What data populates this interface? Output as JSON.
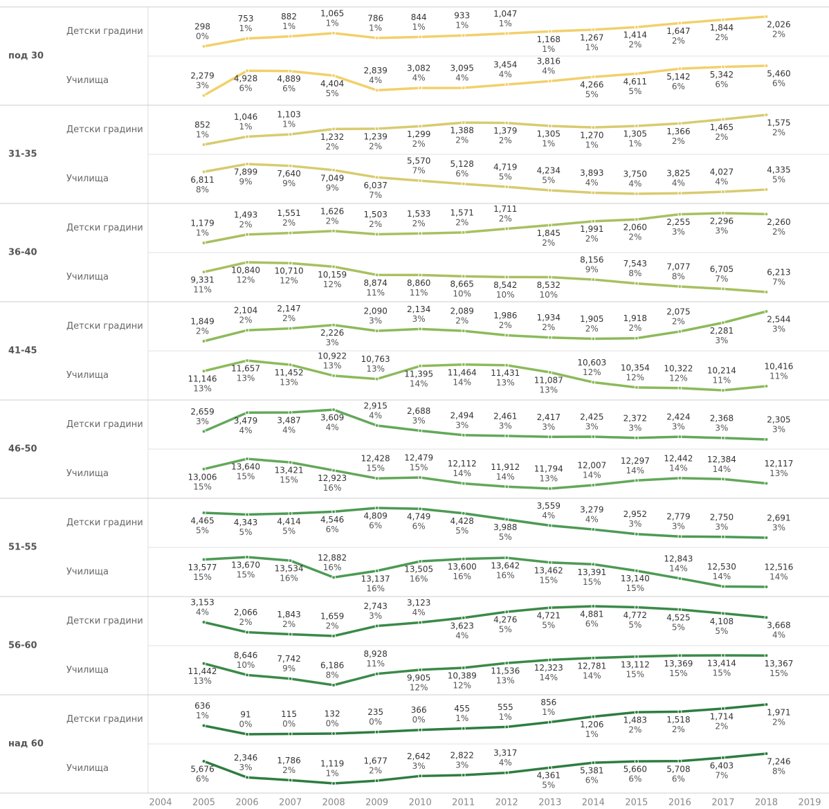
{
  "chart_data": {
    "type": "line",
    "x": [
      2005,
      2006,
      2007,
      2008,
      2009,
      2010,
      2011,
      2012,
      2013,
      2014,
      2015,
      2016,
      2017,
      2018
    ],
    "xlim": [
      2004,
      2019
    ],
    "xticks": [
      2004,
      2005,
      2006,
      2007,
      2008,
      2009,
      2010,
      2011,
      2012,
      2013,
      2014,
      2015,
      2016,
      2017,
      2018,
      2019
    ],
    "groups": [
      {
        "name": "под 30",
        "color": "#f2d06b",
        "rows": [
          {
            "name": "Детски градини",
            "values": [
              298,
              753,
              882,
              1065,
              786,
              844,
              933,
              1047,
              1168,
              1267,
              1414,
              1647,
              1844,
              2026
            ],
            "value_labels": [
              "298",
              "753",
              "882",
              "1,065",
              "786",
              "844",
              "933",
              "1,047",
              "1,168",
              "1,267",
              "1,414",
              "1,647",
              "1,844",
              "2,026"
            ],
            "percent_labels": [
              "0%",
              "1%",
              "1%",
              "1%",
              "1%",
              "1%",
              "1%",
              "1%",
              "1%",
              "1%",
              "2%",
              "2%",
              "2%",
              "2%"
            ]
          },
          {
            "name": "Училища",
            "values": [
              2279,
              4928,
              4889,
              4404,
              2839,
              3082,
              3095,
              3454,
              3816,
              4266,
              4611,
              5142,
              5342,
              5460
            ],
            "value_labels": [
              "2,279",
              "4,928",
              "4,889",
              "4,404",
              "2,839",
              "3,082",
              "3,095",
              "3,454",
              "3,816",
              "4,266",
              "4,611",
              "5,142",
              "5,342",
              "5,460"
            ],
            "percent_labels": [
              "3%",
              "6%",
              "6%",
              "5%",
              "4%",
              "4%",
              "4%",
              "4%",
              "4%",
              "5%",
              "5%",
              "6%",
              "6%",
              "6%"
            ]
          }
        ]
      },
      {
        "name": "31-35",
        "color": "#d8cb70",
        "rows": [
          {
            "name": "Детски градини",
            "values": [
              852,
              1046,
              1103,
              1232,
              1239,
              1299,
              1388,
              1379,
              1305,
              1270,
              1305,
              1366,
              1465,
              1575
            ],
            "value_labels": [
              "852",
              "1,046",
              "1,103",
              "1,232",
              "1,239",
              "1,299",
              "1,388",
              "1,379",
              "1,305",
              "1,270",
              "1,305",
              "1,366",
              "1,465",
              "1,575"
            ],
            "percent_labels": [
              "1%",
              "1%",
              "1%",
              "2%",
              "2%",
              "2%",
              "2%",
              "2%",
              "1%",
              "1%",
              "1%",
              "2%",
              "2%",
              "2%"
            ]
          },
          {
            "name": "Училища",
            "values": [
              6811,
              7899,
              7640,
              7049,
              6037,
              5570,
              5128,
              4719,
              4234,
              3893,
              3750,
              3825,
              4027,
              4335
            ],
            "value_labels": [
              "6,811",
              "7,899",
              "7,640",
              "7,049",
              "6,037",
              "5,570",
              "5,128",
              "4,719",
              "4,234",
              "3,893",
              "3,750",
              "3,825",
              "4,027",
              "4,335"
            ],
            "percent_labels": [
              "8%",
              "9%",
              "9%",
              "9%",
              "7%",
              "7%",
              "6%",
              "5%",
              "5%",
              "4%",
              "4%",
              "4%",
              "4%",
              "5%"
            ]
          }
        ]
      },
      {
        "name": "36-40",
        "color": "#a8c060",
        "rows": [
          {
            "name": "Детски градини",
            "values": [
              1179,
              1493,
              1551,
              1626,
              1503,
              1533,
              1571,
              1711,
              1845,
              1991,
              2060,
              2255,
              2296,
              2260
            ],
            "value_labels": [
              "1,179",
              "1,493",
              "1,551",
              "1,626",
              "1,503",
              "1,533",
              "1,571",
              "1,711",
              "1,845",
              "1,991",
              "2,060",
              "2,255",
              "2,296",
              "2,260"
            ],
            "percent_labels": [
              "1%",
              "2%",
              "2%",
              "2%",
              "2%",
              "2%",
              "2%",
              "2%",
              "2%",
              "2%",
              "2%",
              "3%",
              "3%",
              "2%"
            ]
          },
          {
            "name": "Училища",
            "values": [
              9331,
              10840,
              10710,
              10159,
              8874,
              8860,
              8665,
              8542,
              8532,
              8156,
              7543,
              7077,
              6705,
              6213
            ],
            "value_labels": [
              "9,331",
              "10,840",
              "10,710",
              "10,159",
              "8,874",
              "8,860",
              "8,665",
              "8,542",
              "8,532",
              "8,156",
              "7,543",
              "7,077",
              "6,705",
              "6,213"
            ],
            "percent_labels": [
              "11%",
              "12%",
              "12%",
              "12%",
              "11%",
              "11%",
              "10%",
              "10%",
              "10%",
              "9%",
              "8%",
              "8%",
              "7%",
              "7%"
            ]
          }
        ]
      },
      {
        "name": "41-45",
        "color": "#8cba5a",
        "rows": [
          {
            "name": "Детски градини",
            "values": [
              1849,
              2104,
              2147,
              2226,
              2090,
              2134,
              2089,
              1986,
              1934,
              1905,
              1918,
              2075,
              2281,
              2544
            ],
            "value_labels": [
              "1,849",
              "2,104",
              "2,147",
              "2,226",
              "2,090",
              "2,134",
              "2,089",
              "1,986",
              "1,934",
              "1,905",
              "1,918",
              "2,075",
              "2,281",
              "2,544"
            ],
            "percent_labels": [
              "2%",
              "2%",
              "2%",
              "3%",
              "3%",
              "3%",
              "2%",
              "2%",
              "2%",
              "2%",
              "2%",
              "2%",
              "3%",
              "3%"
            ]
          },
          {
            "name": "Училища",
            "values": [
              11146,
              11657,
              11452,
              10922,
              10763,
              11395,
              11464,
              11431,
              11087,
              10603,
              10354,
              10322,
              10214,
              10416
            ],
            "value_labels": [
              "11,146",
              "11,657",
              "11,452",
              "10,922",
              "10,763",
              "11,395",
              "11,464",
              "11,431",
              "11,087",
              "10,603",
              "10,354",
              "10,322",
              "10,214",
              "10,416"
            ],
            "percent_labels": [
              "13%",
              "13%",
              "13%",
              "13%",
              "13%",
              "14%",
              "14%",
              "13%",
              "13%",
              "12%",
              "12%",
              "12%",
              "11%",
              "11%"
            ]
          }
        ]
      },
      {
        "name": "46-50",
        "color": "#63a85a",
        "rows": [
          {
            "name": "Детски градини",
            "values": [
              2659,
              3479,
              3487,
              3609,
              2915,
              2688,
              2494,
              2461,
              2417,
              2425,
              2372,
              2424,
              2368,
              2305
            ],
            "value_labels": [
              "2,659",
              "3,479",
              "3,487",
              "3,609",
              "2,915",
              "2,688",
              "2,494",
              "2,461",
              "2,417",
              "2,425",
              "2,372",
              "2,424",
              "2,368",
              "2,305"
            ],
            "percent_labels": [
              "3%",
              "4%",
              "4%",
              "4%",
              "4%",
              "3%",
              "3%",
              "3%",
              "3%",
              "3%",
              "3%",
              "3%",
              "3%",
              "3%"
            ]
          },
          {
            "name": "Училища",
            "values": [
              13006,
              13640,
              13421,
              12923,
              12428,
              12479,
              12112,
              11912,
              11794,
              12007,
              12297,
              12442,
              12384,
              12117
            ],
            "value_labels": [
              "13,006",
              "13,640",
              "13,421",
              "12,923",
              "12,428",
              "12,479",
              "12,112",
              "11,912",
              "11,794",
              "12,007",
              "12,297",
              "12,442",
              "12,384",
              "12,117"
            ],
            "percent_labels": [
              "15%",
              "15%",
              "15%",
              "16%",
              "15%",
              "15%",
              "14%",
              "14%",
              "13%",
              "14%",
              "14%",
              "14%",
              "14%",
              "13%"
            ]
          }
        ]
      },
      {
        "name": "51-55",
        "color": "#4c9a54",
        "rows": [
          {
            "name": "Детски градини",
            "values": [
              4465,
              4343,
              4414,
              4546,
              4809,
              4749,
              4428,
              3988,
              3559,
              3279,
              2952,
              2779,
              2750,
              2691
            ],
            "value_labels": [
              "4,465",
              "4,343",
              "4,414",
              "4,546",
              "4,809",
              "4,749",
              "4,428",
              "3,988",
              "3,559",
              "3,279",
              "2,952",
              "2,779",
              "2,750",
              "2,691"
            ],
            "percent_labels": [
              "5%",
              "5%",
              "5%",
              "6%",
              "6%",
              "6%",
              "5%",
              "5%",
              "4%",
              "4%",
              "3%",
              "3%",
              "3%",
              "3%"
            ]
          },
          {
            "name": "Училища",
            "values": [
              13577,
              13670,
              13534,
              12882,
              13137,
              13505,
              13600,
              13642,
              13462,
              13391,
              13140,
              12843,
              12530,
              12516
            ],
            "value_labels": [
              "13,577",
              "13,670",
              "13,534",
              "12,882",
              "13,137",
              "13,505",
              "13,600",
              "13,642",
              "13,462",
              "13,391",
              "13,140",
              "12,843",
              "12,530",
              "12,516"
            ],
            "percent_labels": [
              "15%",
              "15%",
              "16%",
              "16%",
              "16%",
              "16%",
              "16%",
              "16%",
              "15%",
              "15%",
              "15%",
              "14%",
              "14%",
              "14%"
            ]
          }
        ]
      },
      {
        "name": "56-60",
        "color": "#3a8a48",
        "rows": [
          {
            "name": "Детски градини",
            "values": [
              3153,
              2066,
              1843,
              1659,
              2743,
              3123,
              3623,
              4276,
              4721,
              4881,
              4772,
              4525,
              4108,
              3668
            ],
            "value_labels": [
              "3,153",
              "2,066",
              "1,843",
              "1,659",
              "2,743",
              "3,123",
              "3,623",
              "4,276",
              "4,721",
              "4,881",
              "4,772",
              "4,525",
              "4,108",
              "3,668"
            ],
            "percent_labels": [
              "4%",
              "2%",
              "2%",
              "2%",
              "3%",
              "4%",
              "4%",
              "5%",
              "5%",
              "6%",
              "5%",
              "5%",
              "5%",
              "4%"
            ]
          },
          {
            "name": "Училища",
            "values": [
              11442,
              8646,
              7742,
              6186,
              8928,
              9905,
              10389,
              11536,
              12323,
              12781,
              13112,
              13369,
              13414,
              13367
            ],
            "value_labels": [
              "11,442",
              "8,646",
              "7,742",
              "6,186",
              "8,928",
              "9,905",
              "10,389",
              "11,536",
              "12,323",
              "12,781",
              "13,112",
              "13,369",
              "13,414",
              "13,367"
            ],
            "percent_labels": [
              "13%",
              "10%",
              "9%",
              "8%",
              "11%",
              "12%",
              "12%",
              "13%",
              "14%",
              "14%",
              "15%",
              "15%",
              "15%",
              "15%"
            ]
          }
        ]
      },
      {
        "name": "над 60",
        "color": "#2e7d40",
        "rows": [
          {
            "name": "Детски градини",
            "values": [
              636,
              91,
              115,
              132,
              235,
              366,
              455,
              555,
              856,
              1206,
              1483,
              1518,
              1714,
              1971
            ],
            "value_labels": [
              "636",
              "91",
              "115",
              "132",
              "235",
              "366",
              "455",
              "555",
              "856",
              "1,206",
              "1,483",
              "1,518",
              "1,714",
              "1,971"
            ],
            "percent_labels": [
              "1%",
              "0%",
              "0%",
              "0%",
              "0%",
              "0%",
              "1%",
              "1%",
              "1%",
              "1%",
              "2%",
              "2%",
              "2%",
              "2%"
            ]
          },
          {
            "name": "Училища",
            "values": [
              5676,
              2346,
              1786,
              1119,
              1677,
              2642,
              2822,
              3317,
              4361,
              5381,
              5660,
              5708,
              6403,
              7246
            ],
            "value_labels": [
              "5,676",
              "2,346",
              "1,786",
              "1,119",
              "1,677",
              "2,642",
              "2,822",
              "3,317",
              "4,361",
              "5,381",
              "5,660",
              "5,708",
              "6,403",
              "7,246"
            ],
            "percent_labels": [
              "6%",
              "3%",
              "2%",
              "1%",
              "2%",
              "3%",
              "3%",
              "4%",
              "5%",
              "6%",
              "6%",
              "6%",
              "7%",
              "8%"
            ]
          }
        ]
      }
    ]
  }
}
